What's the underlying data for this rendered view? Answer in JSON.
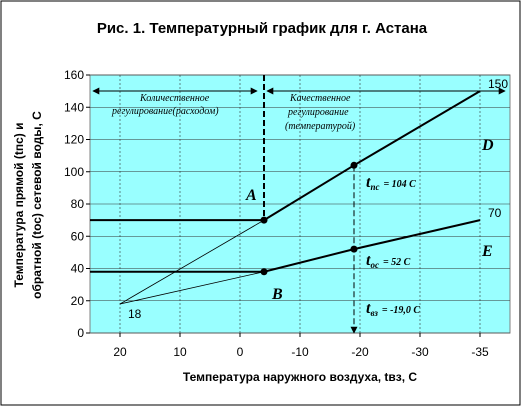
{
  "chart_data": {
    "type": "line",
    "title": "Рис. 1. Температурный график для г. Астана",
    "y_label": [
      "Температура прямой (tпс) и",
      "обратной (tос) сетевой воды, С"
    ],
    "x_label": "Температура наружного воздуха, tвз, С",
    "xlim": [
      25,
      -37.5
    ],
    "xticks": [
      20,
      10,
      0,
      -10,
      -20,
      -30,
      -35
    ],
    "ylim": [
      0,
      160
    ],
    "yticks": [
      0,
      20,
      40,
      60,
      80,
      100,
      120,
      140,
      160
    ],
    "grid": true,
    "background": "#99ffff",
    "series": [
      {
        "x": [
          -4,
          -19,
          -35
        ],
        "values": [
          70,
          104,
          150
        ],
        "color": "#000000",
        "width": 2,
        "markers": [
          0,
          1
        ],
        "end_label": true
      },
      {
        "x": [
          -4,
          -19,
          -35
        ],
        "values": [
          38,
          52,
          70
        ],
        "color": "#000000",
        "width": 2,
        "markers": [
          0,
          1
        ],
        "end_label": true
      },
      {
        "x": [
          25,
          -4
        ],
        "values": [
          70,
          70
        ],
        "color": "#000000",
        "width": 2
      },
      {
        "x": [
          25,
          -4
        ],
        "values": [
          38,
          38
        ],
        "color": "#000000",
        "width": 2
      },
      {
        "x": [
          20,
          -4
        ],
        "values": [
          18,
          70
        ],
        "color": "#000000",
        "width": 0.8,
        "start_label": true
      },
      {
        "x": [
          20,
          -4
        ],
        "values": [
          18,
          38
        ],
        "color": "#000000",
        "width": 0.8
      },
      {
        "x": [
          -4,
          -4
        ],
        "values": [
          160,
          70
        ],
        "color": "#000000",
        "width": 2,
        "dashed": true
      },
      {
        "x": [
          -19,
          -19
        ],
        "values": [
          104,
          0
        ],
        "color": "#000000",
        "width": 1,
        "dashed": true,
        "arrow": true
      }
    ],
    "regions": [
      [
        "Количественное",
        "регулирование(расходом)"
      ],
      [
        "Качественное",
        "регулирование",
        "(температурой)"
      ]
    ],
    "points": [
      "A",
      "B",
      "D",
      "E"
    ],
    "t_labels": [
      {
        "t": "t",
        "sub": "пс",
        "text": "= 104 С"
      },
      {
        "t": "t",
        "sub": "ос",
        "text": "= 52 С"
      },
      {
        "t": "t",
        "sub": "вз",
        "text": "= -19,0 С"
      }
    ]
  }
}
